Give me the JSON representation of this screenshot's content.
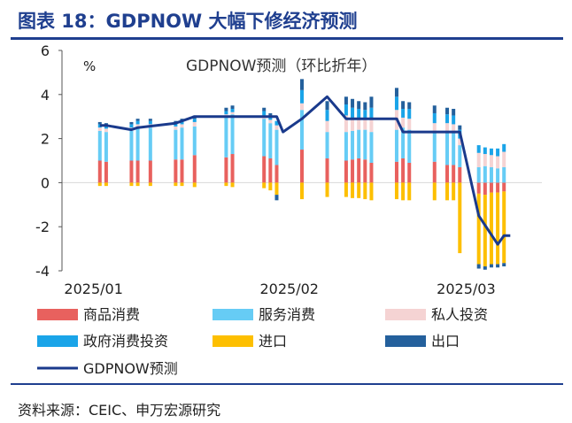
{
  "figure": {
    "title": "图表 18：GDPNOW 大幅下修经济预测",
    "source": "资料来源：CEIC、申万宏源研究"
  },
  "chart_data": {
    "type": "bar",
    "subtitle": "GDPNOW预测（环比折年）",
    "unit_label": "%",
    "ylim": [
      -4,
      6
    ],
    "y_ticks": [
      6,
      4,
      2,
      0,
      -2,
      -4
    ],
    "x_tick_labels": [
      "2025/01",
      "2025/02",
      "2025/03"
    ],
    "x_ticks": [
      "2025-01-01",
      "2025-02-01",
      "2025-03-01"
    ],
    "xlim": [
      "2024-12-27",
      "2025-03-13"
    ],
    "stacked": true,
    "legend_position": "bottom",
    "x": [
      "2025-01-02",
      "2025-01-03",
      "2025-01-07",
      "2025-01-08",
      "2025-01-10",
      "2025-01-14",
      "2025-01-15",
      "2025-01-17",
      "2025-01-22",
      "2025-01-23",
      "2025-01-28",
      "2025-01-29",
      "2025-01-30",
      "2025-02-03",
      "2025-02-07",
      "2025-02-10",
      "2025-02-11",
      "2025-02-12",
      "2025-02-13",
      "2025-02-14",
      "2025-02-18",
      "2025-02-19",
      "2025-02-20",
      "2025-02-24",
      "2025-02-26",
      "2025-02-27",
      "2025-02-28",
      "2025-03-03",
      "2025-03-04",
      "2025-03-05",
      "2025-03-06",
      "2025-03-07"
    ],
    "series": [
      {
        "name": "商品消费",
        "values": [
          1.0,
          0.95,
          1.0,
          1.0,
          1.0,
          1.05,
          1.05,
          1.25,
          1.15,
          1.3,
          1.2,
          1.1,
          0.8,
          1.5,
          1.1,
          1.0,
          1.05,
          1.1,
          1.05,
          0.9,
          0.95,
          1.1,
          0.9,
          0.95,
          0.8,
          0.8,
          0.7,
          -0.5,
          -0.55,
          -0.45,
          -0.45,
          -0.4
        ],
        "color": "#e8615e"
      },
      {
        "name": "服务消费",
        "values": [
          1.35,
          1.35,
          1.35,
          1.5,
          1.5,
          1.35,
          1.45,
          1.3,
          1.85,
          1.8,
          1.7,
          1.6,
          1.6,
          1.8,
          1.2,
          1.3,
          1.3,
          1.3,
          1.35,
          1.4,
          1.45,
          1.4,
          1.5,
          1.4,
          1.5,
          1.5,
          1.0,
          0.7,
          0.75,
          0.7,
          0.65,
          0.7
        ],
        "color": "#66ccf5"
      },
      {
        "name": "私人投资",
        "values": [
          0.15,
          0.15,
          0.15,
          0.15,
          0.15,
          0.15,
          0.15,
          0.2,
          0.1,
          0.1,
          0.15,
          0.15,
          0.2,
          0.3,
          0.5,
          0.75,
          0.6,
          0.5,
          0.45,
          0.55,
          0.9,
          0.45,
          0.5,
          0.35,
          0.4,
          0.35,
          0.3,
          0.65,
          0.55,
          0.55,
          0.55,
          0.7
        ],
        "color": "#f5d3d3"
      },
      {
        "name": "政府消费投资",
        "values": [
          0.15,
          0.15,
          0.15,
          0.15,
          0.15,
          0.15,
          0.15,
          0.15,
          0.15,
          0.15,
          0.2,
          0.2,
          0.2,
          0.6,
          0.5,
          0.5,
          0.45,
          0.45,
          0.45,
          0.55,
          0.6,
          0.4,
          0.45,
          0.45,
          0.4,
          0.4,
          0.4,
          0.35,
          0.3,
          0.3,
          0.35,
          0.35
        ],
        "color": "#1aa4e8"
      },
      {
        "name": "进口",
        "values": [
          -0.15,
          -0.15,
          -0.15,
          -0.15,
          -0.15,
          -0.15,
          -0.15,
          -0.2,
          -0.15,
          -0.2,
          -0.25,
          -0.35,
          -0.55,
          -0.75,
          -0.65,
          -0.65,
          -0.7,
          -0.7,
          -0.75,
          -0.8,
          -0.75,
          -0.8,
          -0.8,
          -0.8,
          -0.8,
          -0.8,
          -3.2,
          -3.2,
          -3.25,
          -3.25,
          -3.25,
          -3.25
        ],
        "color": "#fdbf00"
      },
      {
        "name": "出口",
        "values": [
          0.1,
          0.1,
          0.1,
          0.1,
          0.1,
          0.1,
          0.1,
          0.15,
          0.15,
          0.15,
          0.15,
          0.1,
          -0.25,
          0.5,
          0.4,
          0.35,
          0.4,
          0.35,
          0.35,
          0.5,
          0.4,
          0.35,
          0.3,
          0.35,
          0.3,
          0.3,
          0.2,
          -0.2,
          -0.15,
          -0.15,
          -0.15,
          -0.15
        ],
        "color": "#24609c"
      }
    ],
    "line": {
      "name": "GDPNOW预测",
      "color": "#1a3a8c",
      "points": [
        {
          "x": "2025-01-02",
          "y": 2.6
        },
        {
          "x": "2025-01-03",
          "y": 2.6
        },
        {
          "x": "2025-01-07",
          "y": 2.4
        },
        {
          "x": "2025-01-08",
          "y": 2.5
        },
        {
          "x": "2025-01-14",
          "y": 2.7
        },
        {
          "x": "2025-01-17",
          "y": 3.0
        },
        {
          "x": "2025-01-30",
          "y": 3.0
        },
        {
          "x": "2025-01-31",
          "y": 2.3
        },
        {
          "x": "2025-02-03",
          "y": 2.9
        },
        {
          "x": "2025-02-07",
          "y": 3.9
        },
        {
          "x": "2025-02-10",
          "y": 2.9
        },
        {
          "x": "2025-02-18",
          "y": 2.9
        },
        {
          "x": "2025-02-19",
          "y": 2.3
        },
        {
          "x": "2025-02-28",
          "y": 2.3
        },
        {
          "x": "2025-03-03",
          "y": -1.5
        },
        {
          "x": "2025-03-06",
          "y": -2.8
        },
        {
          "x": "2025-03-07",
          "y": -2.4
        },
        {
          "x": "2025-03-08",
          "y": -2.4
        }
      ]
    }
  }
}
